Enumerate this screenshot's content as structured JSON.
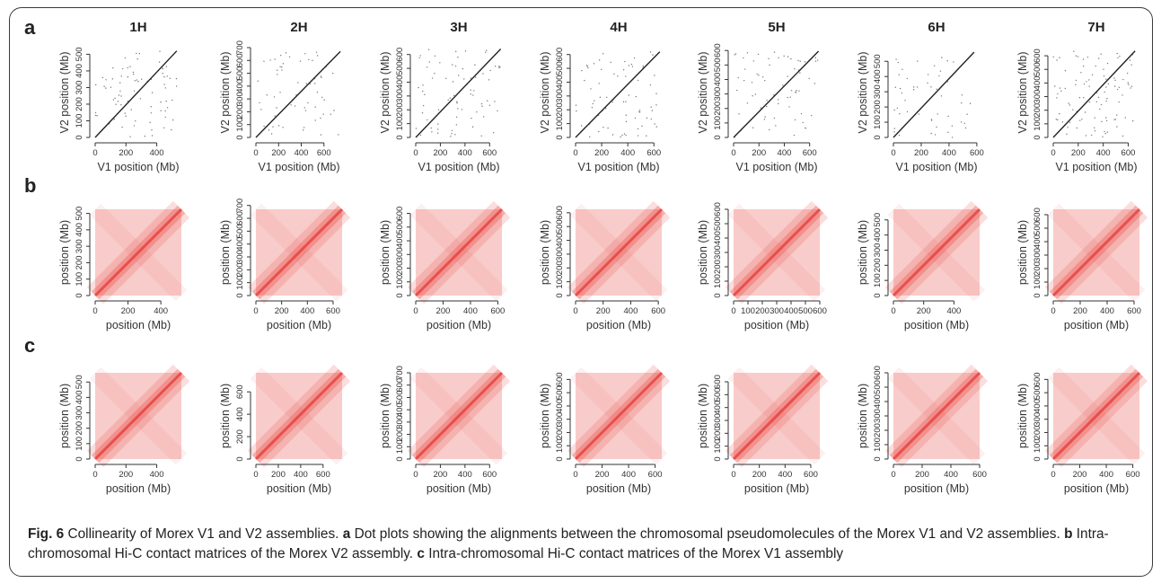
{
  "figure": {
    "panel_labels": [
      "a",
      "b",
      "c"
    ],
    "column_titles": [
      "1H",
      "2H",
      "3H",
      "4H",
      "5H",
      "6H",
      "7H"
    ],
    "caption": {
      "fig_label": "Fig. 6",
      "title": " Collinearity of Morex V1 and V2 assemblies. ",
      "part_a_label": "a",
      "part_a_text": " Dot plots showing the alignments between the chromosomal pseudomolecules of the Morex V1 and V2 assemblies. ",
      "part_b_label": "b",
      "part_b_text": " Intra-chromosomal Hi-C contact matrices of the Morex V2 assembly. ",
      "part_c_label": "c",
      "part_c_text": " Intra-chromosomal Hi-C contact matrices of the Morex V1 assembly"
    },
    "colors": {
      "heat": "#e8433f",
      "dots": "#222222",
      "axis": "#333333"
    }
  },
  "chart_data": [
    {
      "panel": "a",
      "type": "scatter",
      "description": "dot plots V1 vs V2",
      "xlabel": "V1 position (Mb)",
      "ylabel": "V2 position (Mb)",
      "charts": [
        {
          "chromosome": "1H",
          "xticks": [
            0,
            200,
            400
          ],
          "yticks": [
            0,
            100,
            200,
            300,
            400,
            500
          ],
          "xmax": 560,
          "ymax": 540,
          "diag_end": [
            530,
            520
          ]
        },
        {
          "chromosome": "2H",
          "xticks": [
            0,
            200,
            400,
            600
          ],
          "yticks": [
            0,
            100,
            200,
            300,
            400,
            500,
            600,
            700
          ],
          "xmax": 760,
          "ymax": 700,
          "diag_end": [
            745,
            670
          ]
        },
        {
          "chromosome": "3H",
          "xticks": [
            0,
            200,
            400,
            600
          ],
          "yticks": [
            0,
            100,
            200,
            300,
            400,
            500,
            600
          ],
          "xmax": 700,
          "ymax": 650,
          "diag_end": [
            690,
            640
          ]
        },
        {
          "chromosome": "4H",
          "xticks": [
            0,
            200,
            400,
            600
          ],
          "yticks": [
            0,
            100,
            200,
            300,
            400,
            500,
            600
          ],
          "xmax": 660,
          "ymax": 650,
          "diag_end": [
            645,
            620
          ]
        },
        {
          "chromosome": "5H",
          "xticks": [
            0,
            200,
            400,
            600
          ],
          "yticks": [
            0,
            100,
            200,
            300,
            400,
            500,
            600
          ],
          "xmax": 680,
          "ymax": 620,
          "diag_end": [
            670,
            595
          ]
        },
        {
          "chromosome": "6H",
          "xticks": [
            0,
            200,
            400,
            600
          ],
          "yticks": [
            0,
            100,
            200,
            300,
            400,
            500
          ],
          "xmax": 620,
          "ymax": 590,
          "diag_end": [
            580,
            560
          ]
        },
        {
          "chromosome": "7H",
          "xticks": [
            0,
            200,
            400,
            600
          ],
          "yticks": [
            0,
            100,
            200,
            300,
            400,
            500,
            600
          ],
          "xmax": 690,
          "ymax": 660,
          "diag_end": [
            655,
            635
          ]
        }
      ]
    },
    {
      "panel": "b",
      "type": "heatmap",
      "description": "Hi-C contact matrices Morex V2",
      "xlabel": "position (Mb)",
      "ylabel": "position (Mb)",
      "charts": [
        {
          "chromosome": "1H",
          "xticks": [
            0,
            200,
            400
          ],
          "yticks": [
            0,
            100,
            200,
            300,
            400,
            500
          ],
          "max": 525
        },
        {
          "chromosome": "2H",
          "xticks": [
            0,
            200,
            400,
            600
          ],
          "yticks": [
            0,
            100,
            200,
            300,
            400,
            500,
            600,
            700
          ],
          "max": 670
        },
        {
          "chromosome": "3H",
          "xticks": [
            0,
            200,
            400,
            600
          ],
          "yticks": [
            0,
            100,
            200,
            300,
            400,
            500,
            600
          ],
          "max": 630
        },
        {
          "chromosome": "4H",
          "xticks": [
            0,
            200,
            400,
            600
          ],
          "yticks": [
            0,
            100,
            200,
            300,
            400,
            500,
            600
          ],
          "max": 625
        },
        {
          "chromosome": "5H",
          "xticks": [
            0,
            100,
            200,
            300,
            400,
            500,
            600
          ],
          "yticks": [
            0,
            100,
            200,
            300,
            400,
            500,
            600
          ],
          "max": 600
        },
        {
          "chromosome": "6H",
          "xticks": [
            0,
            200,
            400
          ],
          "yticks": [
            0,
            100,
            200,
            300,
            400,
            500
          ],
          "max": 570
        },
        {
          "chromosome": "7H",
          "xticks": [
            0,
            200,
            400,
            600
          ],
          "yticks": [
            0,
            100,
            200,
            300,
            400,
            500,
            600
          ],
          "max": 640
        }
      ]
    },
    {
      "panel": "c",
      "type": "heatmap",
      "description": "Hi-C contact matrices Morex V1",
      "xlabel": "position (Mb)",
      "ylabel": "position (Mb)",
      "charts": [
        {
          "chromosome": "1H",
          "xticks": [
            0,
            200,
            400
          ],
          "yticks": [
            0,
            100,
            200,
            300,
            400,
            500
          ],
          "max": 560
        },
        {
          "chromosome": "2H",
          "xticks": [
            0,
            200,
            400,
            600
          ],
          "yticks": [
            0,
            200,
            400,
            600
          ],
          "max": 770
        },
        {
          "chromosome": "3H",
          "xticks": [
            0,
            200,
            400,
            600
          ],
          "yticks": [
            0,
            100,
            200,
            300,
            400,
            500,
            600,
            700
          ],
          "max": 700
        },
        {
          "chromosome": "4H",
          "xticks": [
            0,
            200,
            400,
            600
          ],
          "yticks": [
            0,
            100,
            200,
            300,
            400,
            500,
            600
          ],
          "max": 650
        },
        {
          "chromosome": "5H",
          "xticks": [
            0,
            200,
            400,
            600
          ],
          "yticks": [
            0,
            100,
            200,
            300,
            400,
            500,
            600
          ],
          "max": 670
        },
        {
          "chromosome": "6H",
          "xticks": [
            0,
            200,
            400,
            600
          ],
          "yticks": [
            0,
            100,
            200,
            300,
            400,
            500,
            600
          ],
          "max": 600
        },
        {
          "chromosome": "7H",
          "xticks": [
            0,
            200,
            400,
            600
          ],
          "yticks": [
            0,
            100,
            200,
            300,
            400,
            500,
            600
          ],
          "max": 650
        }
      ]
    }
  ]
}
